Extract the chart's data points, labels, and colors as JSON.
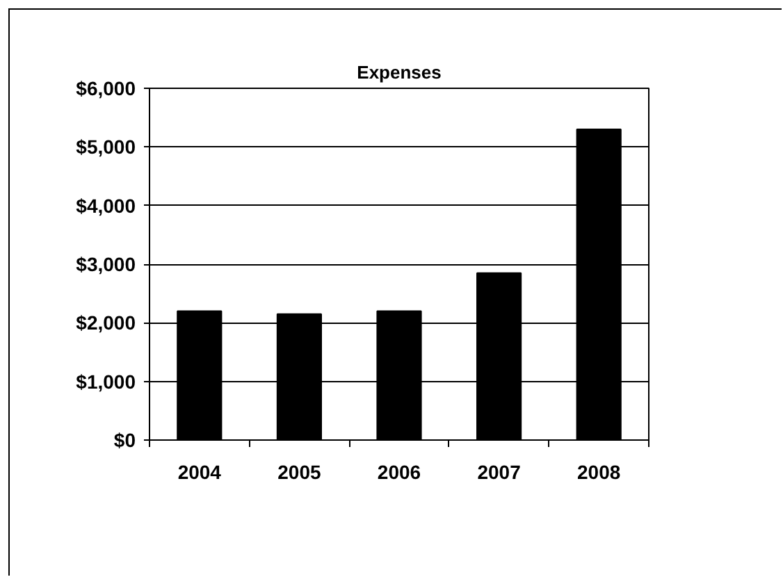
{
  "chart_data": {
    "type": "bar",
    "title": "Expenses",
    "categories": [
      "2004",
      "2005",
      "2006",
      "2007",
      "2008"
    ],
    "values": [
      2200,
      2150,
      2200,
      2850,
      5300
    ],
    "color": "#000000",
    "ylim": [
      0,
      6000
    ],
    "yticks": [
      {
        "value": 0,
        "label": "$0"
      },
      {
        "value": 1000,
        "label": "$1,000"
      },
      {
        "value": 2000,
        "label": "$2,000"
      },
      {
        "value": 3000,
        "label": "$3,000"
      },
      {
        "value": 4000,
        "label": "$4,000"
      },
      {
        "value": 5000,
        "label": "$5,000"
      },
      {
        "value": 6000,
        "label": "$6,000"
      }
    ],
    "grid": "y"
  }
}
